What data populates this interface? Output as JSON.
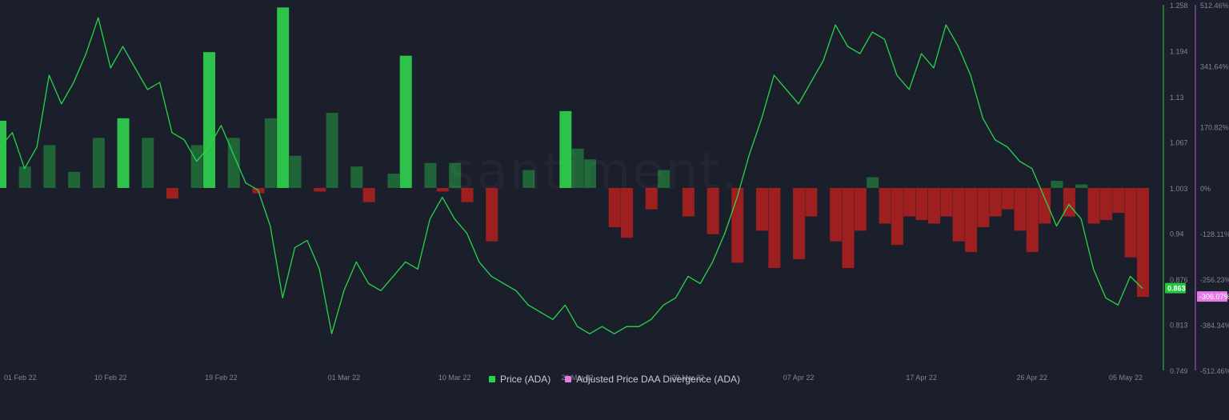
{
  "watermark": "santiment.",
  "legend": {
    "price_label": "Price (ADA)",
    "divergence_label": "Adjusted Price DAA Divergence (ADA)"
  },
  "colors": {
    "background": "#1b1f2b",
    "price_line": "#26d64a",
    "price_badge": "#22c63f",
    "divergence_legend": "#e57ae8",
    "divergence_badge": "#e57ae8",
    "bar_bright_green": "#2fd04c",
    "bar_dark_green": "#1f6b38",
    "bar_red": "#a92020",
    "grid": "#262b38",
    "axis_text": "#7f8595",
    "right_axis_line_price": "#26d64a",
    "right_axis_line_div": "#b75bd6"
  },
  "chart_data": {
    "type": "line",
    "x": {
      "tick_labels": [
        "01 Feb 22",
        "10 Feb 22",
        "19 Feb 22",
        "01 Mar 22",
        "10 Mar 22",
        "20 Mar 22",
        "29 Mar 22",
        "07 Apr 22",
        "17 Apr 22",
        "26 Apr 22",
        "05 May 22"
      ],
      "range": [
        "2022-02-01",
        "2022-05-05"
      ]
    },
    "price_axis": {
      "ticks": [
        1.258,
        1.194,
        1.13,
        1.067,
        1.003,
        0.94,
        0.876,
        0.813,
        0.749
      ],
      "ylim": [
        0.749,
        1.258
      ],
      "current_value_label": "0.863"
    },
    "divergence_axis": {
      "ticks": [
        "512.46%",
        "341.64%",
        "170.82%",
        "0%",
        "-128.11%",
        "-256.23%",
        "-384.34%",
        "-512.46%"
      ],
      "tick_values": [
        512.46,
        341.64,
        170.82,
        0,
        -128.11,
        -256.23,
        -384.34,
        -512.46
      ],
      "zero_at_price": 1.003,
      "current_value_label": "-306.07%"
    },
    "series": [
      {
        "name": "Price (ADA)",
        "type": "line",
        "points": [
          [
            "2022-02-01",
            1.06
          ],
          [
            "2022-02-02",
            1.08
          ],
          [
            "2022-02-03",
            1.03
          ],
          [
            "2022-02-04",
            1.06
          ],
          [
            "2022-02-05",
            1.16
          ],
          [
            "2022-02-06",
            1.12
          ],
          [
            "2022-02-07",
            1.15
          ],
          [
            "2022-02-08",
            1.19
          ],
          [
            "2022-02-09",
            1.24
          ],
          [
            "2022-02-10",
            1.17
          ],
          [
            "2022-02-11",
            1.2
          ],
          [
            "2022-02-12",
            1.17
          ],
          [
            "2022-02-13",
            1.14
          ],
          [
            "2022-02-14",
            1.15
          ],
          [
            "2022-02-15",
            1.08
          ],
          [
            "2022-02-16",
            1.07
          ],
          [
            "2022-02-17",
            1.04
          ],
          [
            "2022-02-18",
            1.06
          ],
          [
            "2022-02-19",
            1.09
          ],
          [
            "2022-02-20",
            1.05
          ],
          [
            "2022-02-21",
            1.01
          ],
          [
            "2022-02-22",
            1.0
          ],
          [
            "2022-02-23",
            0.95
          ],
          [
            "2022-02-24",
            0.85
          ],
          [
            "2022-02-25",
            0.92
          ],
          [
            "2022-02-26",
            0.93
          ],
          [
            "2022-02-27",
            0.89
          ],
          [
            "2022-02-28",
            0.8
          ],
          [
            "2022-03-01",
            0.86
          ],
          [
            "2022-03-02",
            0.9
          ],
          [
            "2022-03-03",
            0.87
          ],
          [
            "2022-03-04",
            0.86
          ],
          [
            "2022-03-05",
            0.88
          ],
          [
            "2022-03-06",
            0.9
          ],
          [
            "2022-03-07",
            0.89
          ],
          [
            "2022-03-08",
            0.96
          ],
          [
            "2022-03-09",
            0.99
          ],
          [
            "2022-03-10",
            0.96
          ],
          [
            "2022-03-11",
            0.94
          ],
          [
            "2022-03-12",
            0.9
          ],
          [
            "2022-03-13",
            0.88
          ],
          [
            "2022-03-14",
            0.87
          ],
          [
            "2022-03-15",
            0.86
          ],
          [
            "2022-03-16",
            0.84
          ],
          [
            "2022-03-17",
            0.83
          ],
          [
            "2022-03-18",
            0.82
          ],
          [
            "2022-03-19",
            0.84
          ],
          [
            "2022-03-20",
            0.81
          ],
          [
            "2022-03-21",
            0.8
          ],
          [
            "2022-03-22",
            0.81
          ],
          [
            "2022-03-23",
            0.8
          ],
          [
            "2022-03-24",
            0.81
          ],
          [
            "2022-03-25",
            0.81
          ],
          [
            "2022-03-26",
            0.82
          ],
          [
            "2022-03-27",
            0.84
          ],
          [
            "2022-03-28",
            0.85
          ],
          [
            "2022-03-29",
            0.88
          ],
          [
            "2022-03-30",
            0.87
          ],
          [
            "2022-03-31",
            0.9
          ],
          [
            "2022-04-01",
            0.94
          ],
          [
            "2022-04-02",
            0.99
          ],
          [
            "2022-04-03",
            1.05
          ],
          [
            "2022-04-04",
            1.1
          ],
          [
            "2022-04-05",
            1.16
          ],
          [
            "2022-04-06",
            1.14
          ],
          [
            "2022-04-07",
            1.12
          ],
          [
            "2022-04-08",
            1.15
          ],
          [
            "2022-04-09",
            1.18
          ],
          [
            "2022-04-10",
            1.23
          ],
          [
            "2022-04-11",
            1.2
          ],
          [
            "2022-04-12",
            1.19
          ],
          [
            "2022-04-13",
            1.22
          ],
          [
            "2022-04-14",
            1.21
          ],
          [
            "2022-04-15",
            1.16
          ],
          [
            "2022-04-16",
            1.14
          ],
          [
            "2022-04-17",
            1.19
          ],
          [
            "2022-04-18",
            1.17
          ],
          [
            "2022-04-19",
            1.23
          ],
          [
            "2022-04-20",
            1.2
          ],
          [
            "2022-04-21",
            1.16
          ],
          [
            "2022-04-22",
            1.1
          ],
          [
            "2022-04-23",
            1.07
          ],
          [
            "2022-04-24",
            1.06
          ],
          [
            "2022-04-25",
            1.04
          ],
          [
            "2022-04-26",
            1.03
          ],
          [
            "2022-04-27",
            0.99
          ],
          [
            "2022-04-28",
            0.95
          ],
          [
            "2022-04-29",
            0.98
          ],
          [
            "2022-04-30",
            0.96
          ],
          [
            "2022-05-01",
            0.89
          ],
          [
            "2022-05-02",
            0.85
          ],
          [
            "2022-05-03",
            0.84
          ],
          [
            "2022-05-04",
            0.88
          ],
          [
            "2022-05-05",
            0.863
          ]
        ]
      },
      {
        "name": "Adjusted Price DAA Divergence (ADA)",
        "type": "bar",
        "bars": [
          {
            "date": "2022-02-01",
            "value": 188,
            "strength": "bright"
          },
          {
            "date": "2022-02-03",
            "value": 60,
            "strength": "dark"
          },
          {
            "date": "2022-02-05",
            "value": 120,
            "strength": "dark"
          },
          {
            "date": "2022-02-07",
            "value": 45,
            "strength": "dark"
          },
          {
            "date": "2022-02-09",
            "value": 140,
            "strength": "dark"
          },
          {
            "date": "2022-02-11",
            "value": 195,
            "strength": "bright"
          },
          {
            "date": "2022-02-13",
            "value": 140,
            "strength": "dark"
          },
          {
            "date": "2022-02-15",
            "value": -30,
            "strength": "red"
          },
          {
            "date": "2022-02-17",
            "value": 120,
            "strength": "dark"
          },
          {
            "date": "2022-02-18",
            "value": 380,
            "strength": "bright"
          },
          {
            "date": "2022-02-20",
            "value": 140,
            "strength": "dark"
          },
          {
            "date": "2022-02-22",
            "value": -15,
            "strength": "red"
          },
          {
            "date": "2022-02-23",
            "value": 195,
            "strength": "dark"
          },
          {
            "date": "2022-02-24",
            "value": 505,
            "strength": "bright"
          },
          {
            "date": "2022-02-25",
            "value": 90,
            "strength": "dark"
          },
          {
            "date": "2022-02-27",
            "value": -10,
            "strength": "red"
          },
          {
            "date": "2022-02-28",
            "value": 210,
            "strength": "dark"
          },
          {
            "date": "2022-03-02",
            "value": 60,
            "strength": "dark"
          },
          {
            "date": "2022-03-03",
            "value": -40,
            "strength": "red"
          },
          {
            "date": "2022-03-05",
            "value": 40,
            "strength": "dark"
          },
          {
            "date": "2022-03-06",
            "value": 370,
            "strength": "bright"
          },
          {
            "date": "2022-03-08",
            "value": 70,
            "strength": "dark"
          },
          {
            "date": "2022-03-09",
            "value": -10,
            "strength": "red"
          },
          {
            "date": "2022-03-10",
            "value": 70,
            "strength": "dark"
          },
          {
            "date": "2022-03-11",
            "value": -40,
            "strength": "red"
          },
          {
            "date": "2022-03-13",
            "value": -150,
            "strength": "red"
          },
          {
            "date": "2022-03-16",
            "value": 50,
            "strength": "dark"
          },
          {
            "date": "2022-03-19",
            "value": 215,
            "strength": "bright"
          },
          {
            "date": "2022-03-20",
            "value": 110,
            "strength": "dark"
          },
          {
            "date": "2022-03-21",
            "value": 80,
            "strength": "dark"
          },
          {
            "date": "2022-03-23",
            "value": -110,
            "strength": "red"
          },
          {
            "date": "2022-03-24",
            "value": -140,
            "strength": "red"
          },
          {
            "date": "2022-03-26",
            "value": -60,
            "strength": "red"
          },
          {
            "date": "2022-03-27",
            "value": 50,
            "strength": "dark"
          },
          {
            "date": "2022-03-29",
            "value": -80,
            "strength": "red"
          },
          {
            "date": "2022-03-31",
            "value": -130,
            "strength": "red"
          },
          {
            "date": "2022-04-02",
            "value": -210,
            "strength": "red"
          },
          {
            "date": "2022-04-04",
            "value": -120,
            "strength": "red"
          },
          {
            "date": "2022-04-05",
            "value": -225,
            "strength": "red"
          },
          {
            "date": "2022-04-07",
            "value": -200,
            "strength": "red"
          },
          {
            "date": "2022-04-08",
            "value": -80,
            "strength": "red"
          },
          {
            "date": "2022-04-10",
            "value": -150,
            "strength": "red"
          },
          {
            "date": "2022-04-11",
            "value": -225,
            "strength": "red"
          },
          {
            "date": "2022-04-12",
            "value": -120,
            "strength": "red"
          },
          {
            "date": "2022-04-13",
            "value": 30,
            "strength": "dark"
          },
          {
            "date": "2022-04-14",
            "value": -100,
            "strength": "red"
          },
          {
            "date": "2022-04-15",
            "value": -160,
            "strength": "red"
          },
          {
            "date": "2022-04-16",
            "value": -80,
            "strength": "red"
          },
          {
            "date": "2022-04-17",
            "value": -90,
            "strength": "red"
          },
          {
            "date": "2022-04-18",
            "value": -100,
            "strength": "red"
          },
          {
            "date": "2022-04-19",
            "value": -80,
            "strength": "red"
          },
          {
            "date": "2022-04-20",
            "value": -150,
            "strength": "red"
          },
          {
            "date": "2022-04-21",
            "value": -180,
            "strength": "red"
          },
          {
            "date": "2022-04-22",
            "value": -110,
            "strength": "red"
          },
          {
            "date": "2022-04-23",
            "value": -80,
            "strength": "red"
          },
          {
            "date": "2022-04-24",
            "value": -60,
            "strength": "red"
          },
          {
            "date": "2022-04-25",
            "value": -120,
            "strength": "red"
          },
          {
            "date": "2022-04-26",
            "value": -180,
            "strength": "red"
          },
          {
            "date": "2022-04-27",
            "value": -100,
            "strength": "red"
          },
          {
            "date": "2022-04-28",
            "value": 20,
            "strength": "dark"
          },
          {
            "date": "2022-04-29",
            "value": -80,
            "strength": "red"
          },
          {
            "date": "2022-04-30",
            "value": 10,
            "strength": "dark"
          },
          {
            "date": "2022-05-01",
            "value": -100,
            "strength": "red"
          },
          {
            "date": "2022-05-02",
            "value": -90,
            "strength": "red"
          },
          {
            "date": "2022-05-03",
            "value": -70,
            "strength": "red"
          },
          {
            "date": "2022-05-04",
            "value": -195,
            "strength": "red"
          },
          {
            "date": "2022-05-05",
            "value": -306,
            "strength": "red"
          }
        ]
      }
    ],
    "grid": false,
    "legend_position": "bottom-center"
  }
}
